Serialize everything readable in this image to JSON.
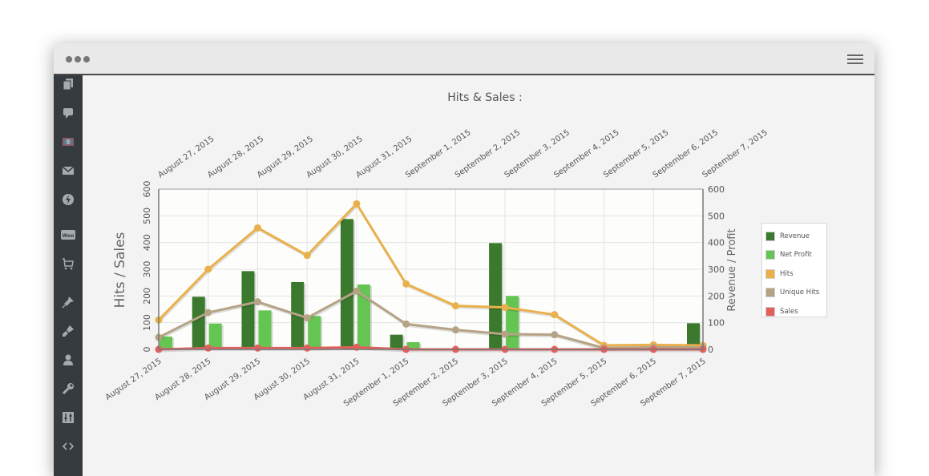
{
  "window": {
    "controls_icon": "three-dots-icon",
    "menu_icon": "hamburger-menu-icon"
  },
  "sidebar": {
    "icons": [
      "pages-icon",
      "comments-icon",
      "media-icon",
      "mail-icon",
      "lightning-icon",
      "woo-icon",
      "cart-icon",
      "pin-icon",
      "brush-icon",
      "user-icon",
      "wrench-icon",
      "sliders-icon",
      "code-icon"
    ],
    "woo_label": "Woo"
  },
  "chart_data": {
    "type": "bar",
    "title": "Hits & Sales :",
    "ylabel_left": "Hits / Sales",
    "ylabel_right": "Revenue / Profit",
    "ylim_left": [
      0,
      600
    ],
    "ylim_right": [
      0,
      600
    ],
    "yticks": [
      0,
      100,
      200,
      300,
      400,
      500,
      600
    ],
    "categories": [
      "August 27, 2015",
      "August 28, 2015",
      "August 29, 2015",
      "August 30, 2015",
      "August 31, 2015",
      "September 1, 2015",
      "September 2, 2015",
      "September 3, 2015",
      "September 4, 2015",
      "September 5, 2015",
      "September 6, 2015",
      "September 7, 2015"
    ],
    "series": [
      {
        "name": "Revenue",
        "type": "bar",
        "axis": "right",
        "color": "#3b7a2e",
        "values": [
          0,
          197,
          293,
          252,
          488,
          55,
          0,
          398,
          0,
          0,
          0,
          98
        ]
      },
      {
        "name": "Net Profit",
        "type": "bar",
        "axis": "right",
        "color": "#65c552",
        "values": [
          48,
          97,
          146,
          125,
          243,
          27,
          0,
          200,
          0,
          0,
          0,
          0
        ]
      },
      {
        "name": "Hits",
        "type": "line",
        "axis": "left",
        "color": "#e9b04c",
        "values": [
          110,
          300,
          455,
          352,
          545,
          245,
          163,
          157,
          130,
          15,
          17,
          15
        ]
      },
      {
        "name": "Unique Hits",
        "type": "line",
        "axis": "left",
        "color": "#b5a385",
        "values": [
          45,
          138,
          178,
          118,
          218,
          95,
          73,
          57,
          55,
          5,
          8,
          7
        ]
      },
      {
        "name": "Sales",
        "type": "line",
        "axis": "left",
        "color": "#e2605c",
        "values": [
          0,
          5,
          5,
          5,
          8,
          0,
          0,
          0,
          0,
          0,
          0,
          0
        ]
      }
    ],
    "grid": true,
    "legend": "right"
  }
}
